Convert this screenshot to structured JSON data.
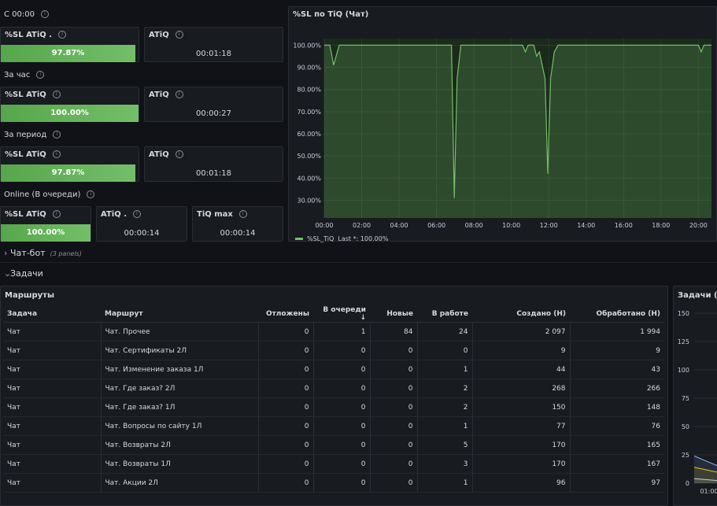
{
  "today": {
    "heading": "С 00:00",
    "sl_title": "%SL ATiQ .",
    "sl_value": "97.87%",
    "sl_fraction": 0.9787,
    "atiq_title": "ATiQ",
    "atiq_value": "00:01:18"
  },
  "hour": {
    "heading": "За час",
    "sl_title": "%SL ATiQ",
    "sl_value": "100.00%",
    "sl_fraction": 1.0,
    "atiq_title": "ATiQ",
    "atiq_value": "00:00:27"
  },
  "period": {
    "heading": "За период",
    "sl_title": "%SL ATiQ",
    "sl_value": "97.87%",
    "sl_fraction": 0.9787,
    "atiq_title": "ATiQ",
    "atiq_value": "00:01:18"
  },
  "online": {
    "heading": "Online (В очереди)",
    "sl_title": "%SL ATiQ",
    "sl_value": "100.00%",
    "sl_fraction": 1.0,
    "atiq_title": "ATiQ .",
    "atiq_value": "00:00:14",
    "tiqmax_title": "TiQ max",
    "tiqmax_value": "00:00:14"
  },
  "sl_chart": {
    "title": "%SL по TiQ (Чат)",
    "legend_series": "%SL_TiQ",
    "legend_last": "Last *: 100.00%"
  },
  "chart_data": [
    {
      "type": "area",
      "title": "%SL по TiQ (Чат)",
      "xlabel": "",
      "ylabel": "",
      "x_ticks": [
        "00:00",
        "02:00",
        "04:00",
        "06:00",
        "08:00",
        "10:00",
        "12:00",
        "14:00",
        "16:00",
        "18:00",
        "20:00"
      ],
      "y_ticks": [
        "30.00%",
        "40.00%",
        "50.00%",
        "60.00%",
        "70.00%",
        "80.00%",
        "90.00%",
        "100.00%"
      ],
      "xlim": [
        0,
        20.7
      ],
      "ylim": [
        22,
        103
      ],
      "grid": true,
      "legend_position": "bottom-left",
      "color": "#73bf69",
      "series": [
        {
          "name": "%SL_TiQ",
          "x": [
            0,
            0.3,
            0.5,
            0.8,
            1.0,
            6.8,
            6.95,
            7.1,
            7.3,
            7.5,
            10.6,
            10.75,
            10.9,
            11.2,
            11.35,
            11.5,
            11.8,
            11.95,
            12.1,
            12.3,
            12.5,
            20.0,
            20.15,
            20.3,
            20.7
          ],
          "values": [
            100,
            100,
            91,
            100,
            100,
            100,
            31,
            85,
            100,
            100,
            100,
            97,
            100,
            100,
            95,
            97,
            85,
            42,
            85,
            97,
            100,
            100,
            97,
            100,
            100
          ]
        }
      ]
    },
    {
      "type": "line",
      "title": "Задачи (Ча",
      "xlabel": "",
      "ylabel": "",
      "y_ticks": [
        0,
        25,
        50,
        75,
        100,
        125,
        150
      ],
      "x_ticks": [
        "01:00"
      ],
      "ylim": [
        0,
        150
      ],
      "grid": true,
      "series": [
        {
          "color": "#8ab8ff",
          "x": [
            0,
            1
          ],
          "values": [
            24,
            14
          ]
        },
        {
          "color": "#f2cc0c",
          "x": [
            0,
            1
          ],
          "values": [
            14,
            9
          ]
        },
        {
          "color": "#ccccdc",
          "x": [
            0,
            1
          ],
          "values": [
            4,
            2
          ]
        }
      ]
    }
  ],
  "chatbot": {
    "caret": "›",
    "label": "Чат-бот",
    "panels": "(3 panels)"
  },
  "tasks": {
    "caret": "⌄",
    "label": "Задачи"
  },
  "routes": {
    "title": "Маршруты",
    "headers": [
      "Задача",
      "Маршрут",
      "Отложены",
      "В очереди",
      "Новые",
      "В работе",
      "Создано (Н)",
      "Обработано (Н)"
    ],
    "sort_arrow": "↓",
    "rows": [
      [
        "Чат",
        "Чат. Прочее",
        "0",
        "1",
        "84",
        "24",
        "2 097",
        "1 994"
      ],
      [
        "Чат",
        "Чат. Сертификаты 2Л",
        "0",
        "0",
        "0",
        "0",
        "9",
        "9"
      ],
      [
        "Чат",
        "Чат. Изменение заказа 1Л",
        "0",
        "0",
        "0",
        "1",
        "44",
        "43"
      ],
      [
        "Чат",
        "Чат. Где заказ? 2Л",
        "0",
        "0",
        "0",
        "2",
        "268",
        "266"
      ],
      [
        "Чат",
        "Чат. Где заказ? 1Л",
        "0",
        "0",
        "0",
        "2",
        "150",
        "148"
      ],
      [
        "Чат",
        "Чат. Вопросы по сайту 1Л",
        "0",
        "0",
        "0",
        "1",
        "77",
        "76"
      ],
      [
        "Чат",
        "Чат. Возвраты 2Л",
        "0",
        "0",
        "0",
        "5",
        "170",
        "165"
      ],
      [
        "Чат",
        "Чат. Возвраты 1Л",
        "0",
        "0",
        "0",
        "3",
        "170",
        "167"
      ],
      [
        "Чат",
        "Чат. Акции 2Л",
        "0",
        "0",
        "0",
        "1",
        "96",
        "97"
      ]
    ]
  },
  "tasks_chart": {
    "title": "Задачи (Ча"
  },
  "colors": {
    "background": "#111217",
    "panel": "#181b1f",
    "gauge_green": "#73bf69",
    "text": "#ccccdc"
  },
  "icons": {
    "info": "info-circle-icon",
    "collapse": "chevron-right-icon",
    "expand": "chevron-down-icon",
    "sort": "arrow-down-icon"
  }
}
